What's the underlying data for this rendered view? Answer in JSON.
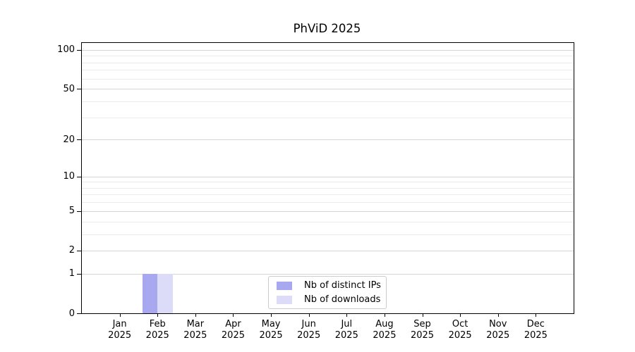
{
  "chart_data": {
    "type": "bar",
    "title": "PhViD 2025",
    "x": {
      "months": [
        "Jan",
        "Feb",
        "Mar",
        "Apr",
        "May",
        "Jun",
        "Jul",
        "Aug",
        "Sep",
        "Oct",
        "Nov",
        "Dec"
      ],
      "year": "2025"
    },
    "categories": [
      "Jan 2025",
      "Feb 2025",
      "Mar 2025",
      "Apr 2025",
      "May 2025",
      "Jun 2025",
      "Jul 2025",
      "Aug 2025",
      "Sep 2025",
      "Oct 2025",
      "Nov 2025",
      "Dec 2025"
    ],
    "series": [
      {
        "name": "Nb of distinct IPs",
        "color": "#a8a8f0",
        "values": [
          0,
          1,
          0,
          0,
          0,
          0,
          0,
          0,
          0,
          0,
          0,
          0
        ]
      },
      {
        "name": "Nb of downloads",
        "color": "#dcdcf8",
        "values": [
          0,
          1,
          0,
          0,
          0,
          0,
          0,
          0,
          0,
          0,
          0,
          0
        ]
      }
    ],
    "y_axis": {
      "scale": "log10(value+1)",
      "tick_values": [
        0,
        1,
        2,
        5,
        10,
        20,
        50,
        100
      ],
      "gridline_values": [
        1,
        2,
        3,
        4,
        5,
        6,
        7,
        8,
        9,
        10,
        20,
        30,
        40,
        50,
        60,
        70,
        80,
        90,
        100
      ],
      "ymax": 113
    },
    "xlabel": "",
    "ylabel": "",
    "grid": true,
    "legend": {
      "position": "lower center",
      "entries": [
        "Nb of distinct IPs",
        "Nb of downloads"
      ]
    }
  },
  "style": {
    "major_grid": "#d4d4d4",
    "minor_grid": "#ececec",
    "spine": "#000000",
    "legend_border": "#cccccc",
    "text": "#000000",
    "background": "#ffffff"
  }
}
